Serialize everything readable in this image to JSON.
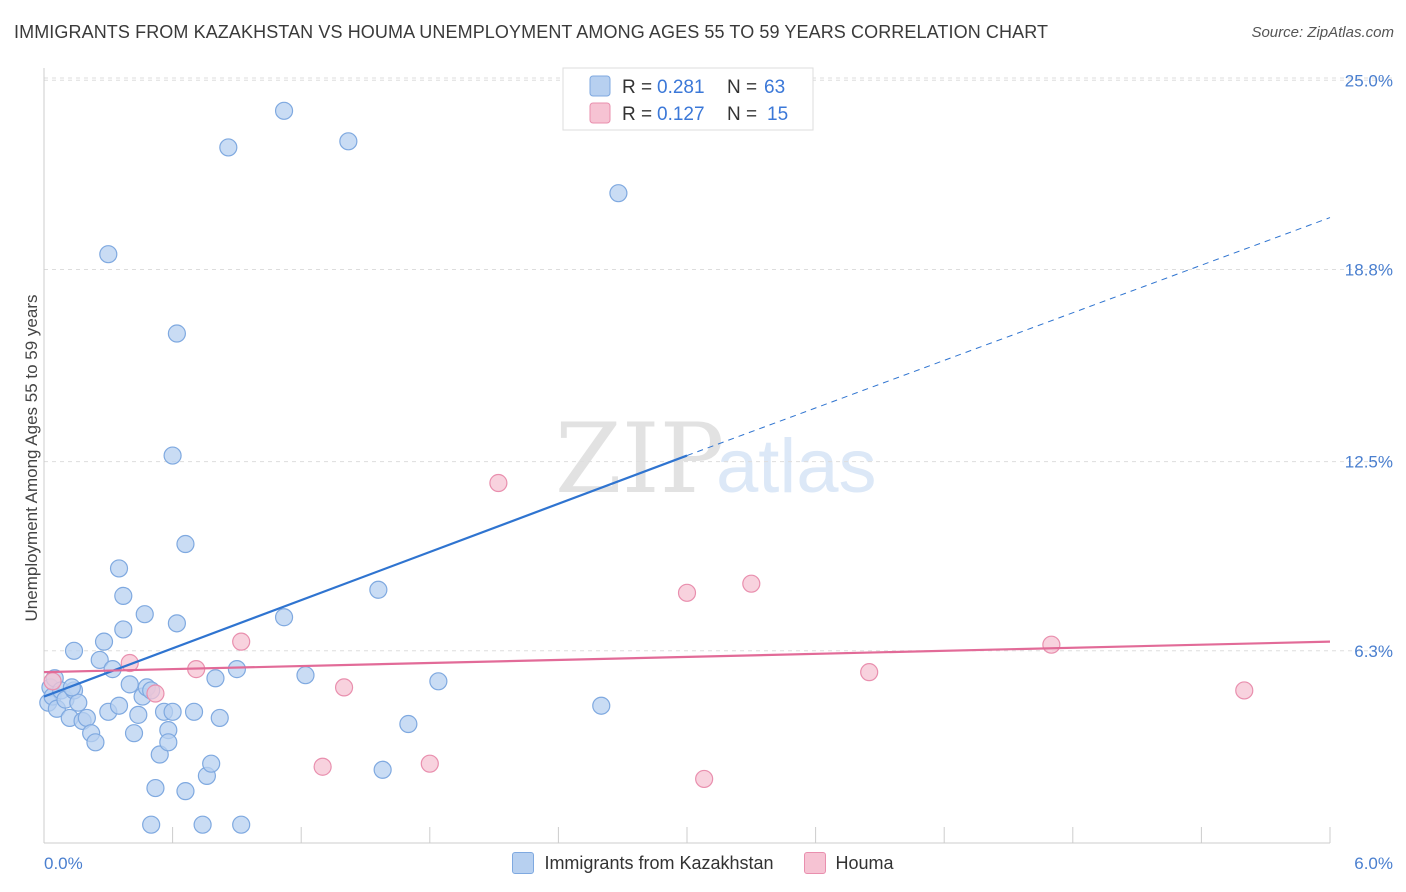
{
  "title": "IMMIGRANTS FROM KAZAKHSTAN VS HOUMA UNEMPLOYMENT AMONG AGES 55 TO 59 YEARS CORRELATION CHART",
  "source": "Source: ZipAtlas.com",
  "watermark": {
    "zip": "ZIP",
    "atlas": "atlas"
  },
  "colors": {
    "blue_fill": "#b7d0f0",
    "blue_stroke": "#7fa9e0",
    "blue_line": "#2f74d0",
    "pink_fill": "#f6c3d3",
    "pink_stroke": "#e98fae",
    "pink_line": "#e26b98",
    "tick_label": "#4a7fcf",
    "grid": "#dddddd"
  },
  "legend_top": [
    {
      "r_label": "R = ",
      "r_value": "0.281",
      "n_label": "N = ",
      "n_value": "63"
    },
    {
      "r_label": "R = ",
      "r_value": "0.127",
      "n_label": "N = ",
      "n_value": "15"
    }
  ],
  "chart_data": {
    "type": "scatter",
    "title": "IMMIGRANTS FROM KAZAKHSTAN VS HOUMA UNEMPLOYMENT AMONG AGES 55 TO 59 YEARS CORRELATION CHART",
    "xlabel": "",
    "ylabel": "Unemployment Among Ages 55 to 59 years",
    "xlim": [
      0,
      6
    ],
    "ylim": [
      0,
      25.6
    ],
    "x_tick_labels": [
      "0.0%",
      "6.0%"
    ],
    "y_ticks": [
      6.3,
      12.5,
      18.8,
      25.0
    ],
    "y_tick_labels": [
      "6.3%",
      "12.5%",
      "18.8%",
      "25.0%"
    ],
    "grid": true,
    "legend_position": "top-center",
    "series": [
      {
        "name": "Immigrants from Kazakhstan",
        "color": "#b7d0f0",
        "points": [
          [
            0.02,
            4.6
          ],
          [
            0.03,
            5.1
          ],
          [
            0.04,
            4.8
          ],
          [
            0.05,
            5.4
          ],
          [
            0.06,
            4.4
          ],
          [
            0.08,
            5.0
          ],
          [
            0.1,
            4.7
          ],
          [
            0.12,
            4.1
          ],
          [
            0.14,
            5.0
          ],
          [
            0.16,
            4.6
          ],
          [
            0.18,
            4.0
          ],
          [
            0.2,
            4.1
          ],
          [
            0.22,
            3.6
          ],
          [
            0.24,
            3.3
          ],
          [
            0.26,
            6.0
          ],
          [
            0.28,
            6.6
          ],
          [
            0.3,
            4.3
          ],
          [
            0.32,
            5.7
          ],
          [
            0.35,
            4.5
          ],
          [
            0.37,
            7.0
          ],
          [
            0.4,
            5.2
          ],
          [
            0.42,
            3.6
          ],
          [
            0.44,
            4.2
          ],
          [
            0.46,
            4.8
          ],
          [
            0.48,
            5.1
          ],
          [
            0.5,
            5.0
          ],
          [
            0.52,
            1.8
          ],
          [
            0.54,
            2.9
          ],
          [
            0.56,
            4.3
          ],
          [
            0.58,
            3.7
          ],
          [
            0.6,
            4.3
          ],
          [
            0.62,
            7.2
          ],
          [
            0.66,
            1.7
          ],
          [
            0.7,
            4.3
          ],
          [
            0.74,
            0.6
          ],
          [
            0.76,
            2.2
          ],
          [
            0.78,
            2.6
          ],
          [
            0.8,
            5.4
          ],
          [
            0.82,
            4.1
          ],
          [
            0.9,
            5.7
          ],
          [
            1.12,
            7.4
          ],
          [
            1.22,
            5.5
          ],
          [
            1.56,
            8.3
          ],
          [
            1.58,
            2.4
          ],
          [
            1.7,
            3.9
          ],
          [
            1.84,
            5.3
          ],
          [
            2.6,
            4.5
          ],
          [
            0.13,
            5.1
          ],
          [
            0.35,
            9.0
          ],
          [
            0.47,
            7.5
          ],
          [
            0.58,
            3.3
          ],
          [
            0.66,
            9.8
          ],
          [
            0.37,
            8.1
          ],
          [
            0.3,
            19.3
          ],
          [
            0.6,
            12.7
          ],
          [
            0.62,
            16.7
          ],
          [
            0.86,
            22.8
          ],
          [
            1.12,
            24.0
          ],
          [
            1.42,
            23.0
          ],
          [
            2.68,
            21.3
          ],
          [
            0.5,
            0.6
          ],
          [
            0.92,
            0.6
          ],
          [
            0.14,
            6.3
          ]
        ]
      },
      {
        "name": "Houma",
        "color": "#f6c3d3",
        "points": [
          [
            0.04,
            5.3
          ],
          [
            0.4,
            5.9
          ],
          [
            0.52,
            4.9
          ],
          [
            0.71,
            5.7
          ],
          [
            0.92,
            6.6
          ],
          [
            1.3,
            2.5
          ],
          [
            1.4,
            5.1
          ],
          [
            1.8,
            2.6
          ],
          [
            2.12,
            11.8
          ],
          [
            3.0,
            8.2
          ],
          [
            3.08,
            2.1
          ],
          [
            3.3,
            8.5
          ],
          [
            3.85,
            5.6
          ],
          [
            4.7,
            6.5
          ],
          [
            5.6,
            5.0
          ]
        ]
      }
    ],
    "trend_lines": [
      {
        "series": "Immigrants from Kazakhstan",
        "x0": 0.0,
        "y0": 4.8,
        "x1": 3.0,
        "y1": 12.7,
        "dashed_to_x": 6.0,
        "dashed_to_y": 20.5
      },
      {
        "series": "Houma",
        "x0": 0.0,
        "y0": 5.6,
        "x1": 6.0,
        "y1": 6.6
      }
    ]
  }
}
